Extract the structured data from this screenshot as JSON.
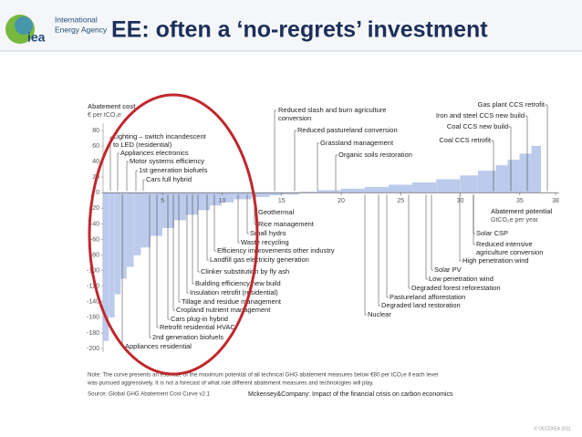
{
  "header": {
    "logo_line1": "International",
    "logo_line2": "Energy Agency",
    "logo_mark": "iea",
    "title": "EE: often a ‘no-regrets’ investment"
  },
  "chart_data": {
    "type": "histogram",
    "y_label": "Abatement cost",
    "y_unit": "€ per tCO₂e",
    "x_label": "Abatement potential",
    "x_unit": "GtCO₂e per year",
    "bins": [
      0,
      0.5,
      1,
      1.5,
      2,
      2.6,
      3.2,
      4,
      5,
      6,
      7,
      8,
      9,
      10,
      11,
      12.5,
      14,
      15,
      16.5,
      18,
      20,
      22,
      24,
      26,
      28,
      30,
      31.5,
      33,
      34,
      35,
      36,
      36.8
    ],
    "values": [
      -190,
      -160,
      -130,
      -110,
      -95,
      -80,
      -70,
      -55,
      -45,
      -35,
      -28,
      -22,
      -16,
      -12,
      -8,
      -5,
      -3,
      -2,
      1,
      3,
      5,
      7,
      10,
      13,
      17,
      22,
      28,
      35,
      42,
      50,
      60
    ],
    "color": "#bccbec",
    "xlim": [
      0,
      38
    ],
    "xticks": [
      5,
      10,
      15,
      20,
      25,
      30,
      35,
      38
    ],
    "ylim": [
      -200,
      80
    ],
    "yticks": [
      -200,
      -180,
      -160,
      -140,
      -120,
      -100,
      -80,
      -60,
      -40,
      -20,
      0,
      20,
      40,
      60,
      80
    ],
    "annotations": [
      "Lighting – switch incandescent",
      "to LED (residential)",
      "Appliances electronics",
      "Motor systems efficiency",
      "1st generation biofuels",
      "Cars full hybrid",
      "Geothermal",
      "Rice management",
      "Small hydro",
      "Waste recycling",
      "Efficiency improvements other industry",
      "Landfill gas electricity generation",
      "Clinker substitution by fly ash",
      "Building efficiency new build",
      "Insulation retrofit (residential)",
      "Tillage and residue management",
      "Cropland nutrient management",
      "Cars plug-in hybrid",
      "Retrofit residential HVAC",
      "2nd generation biofuels",
      "Appliances residential",
      "Reduced slash and burn agriculture",
      "conversion",
      "Reduced pastureland conversion",
      "Grassland management",
      "Organic soils restoration",
      "Gas plant CCS retrofit",
      "Iron and steel CCS new build",
      "Coal CCS new build",
      "Coal CCS retrofit",
      "Solar CSP",
      "Reduced intensive",
      "agriculture conversion",
      "High penetration wind",
      "Solar PV",
      "Low penetration wind",
      "Degraded forest reforestation",
      "Pastureland afforestation",
      "Degraded land restoration",
      "Nuclear"
    ],
    "note": [
      "Note: The curve presents an estimate of the maximum potential of all technical GHG abatement measures below €80 per tCO₂e if each lever",
      "was pursued aggressively. It is not a forecast of what role different abatement measures and technologies will play."
    ],
    "source": "Source: Global GHG Abatement Cost Curve v2.1",
    "citation": "Mckensey&Company: Impact of the financial crisis on carbon economics"
  },
  "footer": "© OECD/IEA 2011"
}
